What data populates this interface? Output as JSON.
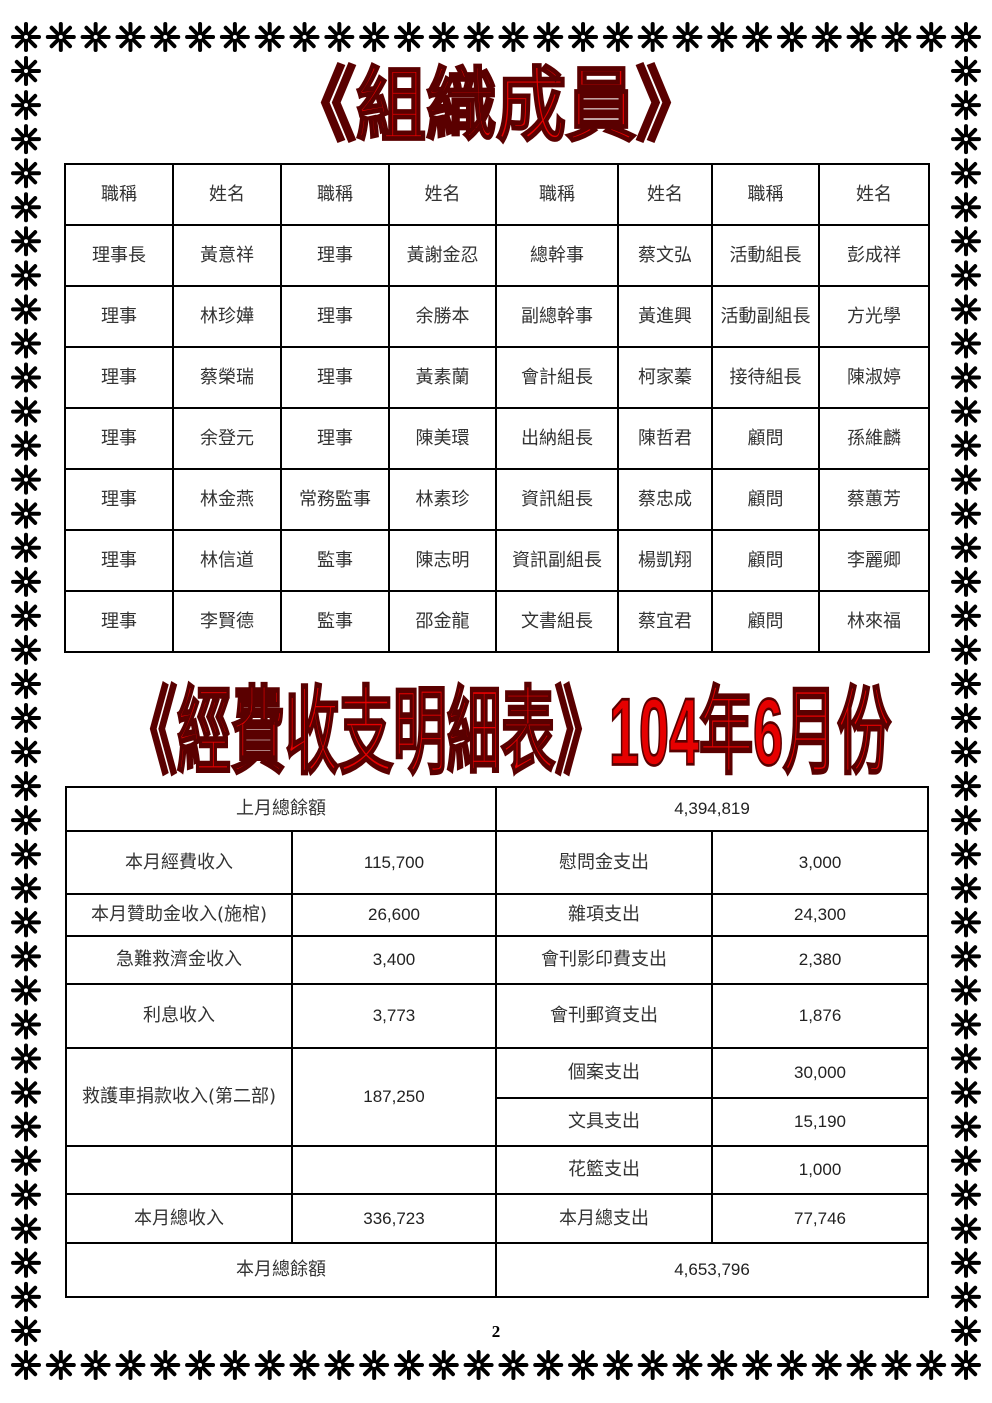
{
  "decoration": {
    "border_icon": "eight-spoke-asterisk-icon",
    "title_color": "#e60000"
  },
  "title_members": "《組織成員》",
  "members_table": {
    "headers": [
      "職稱",
      "姓名",
      "職稱",
      "姓名",
      "職稱",
      "姓名",
      "職稱",
      "姓名"
    ],
    "rows": [
      [
        "理事長",
        "黃意祥",
        "理事",
        "黃謝金忍",
        "總幹事",
        "蔡文弘",
        "活動組長",
        "彭成祥"
      ],
      [
        "理事",
        "林珍嬅",
        "理事",
        "余勝本",
        "副總幹事",
        "黃進興",
        "活動副組長",
        "方光學"
      ],
      [
        "理事",
        "蔡榮瑞",
        "理事",
        "黃素蘭",
        "會計組長",
        "柯家蓁",
        "接待組長",
        "陳淑婷"
      ],
      [
        "理事",
        "余登元",
        "理事",
        "陳美環",
        "出納組長",
        "陳哲君",
        "顧問",
        "孫維麟"
      ],
      [
        "理事",
        "林金燕",
        "常務監事",
        "林素珍",
        "資訊組長",
        "蔡忠成",
        "顧問",
        "蔡蕙芳"
      ],
      [
        "理事",
        "林信道",
        "監事",
        "陳志明",
        "資訊副組長",
        "楊凱翔",
        "顧問",
        "李麗卿"
      ],
      [
        "理事",
        "李賢德",
        "監事",
        "邵金龍",
        "文書組長",
        "蔡宜君",
        "顧問",
        "林來福"
      ]
    ]
  },
  "title_finance": "《經費收支明細表》104年6月份",
  "finance_table": {
    "prev_balance_label": "上月總餘額",
    "prev_balance": "4,394,819",
    "income": [
      {
        "label": "本月經費收入",
        "value": "115,700"
      },
      {
        "label": "本月贊助金收入(施棺)",
        "value": "26,600"
      },
      {
        "label": "急難救濟金收入",
        "value": "3,400"
      },
      {
        "label": "利息收入",
        "value": "3,773"
      },
      {
        "label": "救護車捐款收入(第二部)",
        "value": "187,250"
      }
    ],
    "expense": [
      {
        "label": "慰問金支出",
        "value": "3,000"
      },
      {
        "label": "雜項支出",
        "value": "24,300"
      },
      {
        "label": "會刊影印費支出",
        "value": "2,380"
      },
      {
        "label": "會刊郵資支出",
        "value": "1,876"
      },
      {
        "label": "個案支出",
        "value": "30,000"
      },
      {
        "label": "文具支出",
        "value": "15,190"
      },
      {
        "label": "花籃支出",
        "value": "1,000"
      }
    ],
    "total_income_label": "本月總收入",
    "total_income": "336,723",
    "total_expense_label": "本月總支出",
    "total_expense": "77,746",
    "balance_label": "本月總餘額",
    "balance": "4,653,796"
  },
  "page_number": "2"
}
